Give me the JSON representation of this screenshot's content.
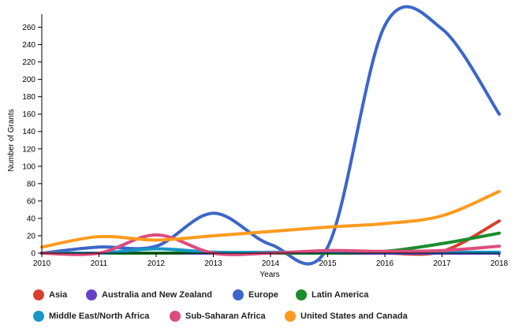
{
  "chart_data": {
    "type": "line",
    "xlabel": "Years",
    "ylabel": "Number of Grants",
    "xlim": [
      2010,
      2018
    ],
    "ylim": [
      0,
      275
    ],
    "x": [
      2010,
      2011,
      2012,
      2013,
      2014,
      2015,
      2016,
      2017,
      2018
    ],
    "x_tick_labels": [
      "2010",
      "2011",
      "2012",
      "2013",
      "2014",
      "2015",
      "2016",
      "2017",
      "2018"
    ],
    "y_ticks": [
      0,
      20,
      40,
      60,
      80,
      100,
      120,
      140,
      160,
      180,
      200,
      220,
      240,
      260
    ],
    "y_tick_labels": [
      "0",
      "20",
      "40",
      "60",
      "80",
      "100",
      "120",
      "140",
      "160",
      "180",
      "200",
      "220",
      "240",
      "260"
    ],
    "series": [
      {
        "name": "Asia",
        "color": "#d6402b",
        "values": [
          0,
          0,
          0,
          0,
          0,
          0,
          0,
          2,
          37
        ]
      },
      {
        "name": "Australia and New Zealand",
        "color": "#6a3fc8",
        "values": [
          0,
          0,
          0,
          0,
          0,
          0,
          0,
          0,
          0
        ]
      },
      {
        "name": "Europe",
        "color": "#3c66c8",
        "values": [
          0,
          7,
          8,
          46,
          10,
          7,
          262,
          258,
          160
        ]
      },
      {
        "name": "Latin America",
        "color": "#1a8c2a",
        "values": [
          0,
          0,
          0,
          1,
          0,
          0,
          2,
          11,
          23
        ]
      },
      {
        "name": "Middle East/North Africa",
        "color": "#1597c6",
        "values": [
          0,
          0,
          5,
          1,
          1,
          1,
          1,
          1,
          1
        ]
      },
      {
        "name": "Sub-Saharan Africa",
        "color": "#dd4c7c",
        "values": [
          0,
          0,
          21,
          0,
          0,
          3,
          2,
          3,
          8
        ]
      },
      {
        "name": "United States and Canada",
        "color": "#ff9a1f",
        "values": [
          7,
          19,
          15,
          20,
          25,
          30,
          34,
          43,
          71
        ]
      }
    ]
  }
}
